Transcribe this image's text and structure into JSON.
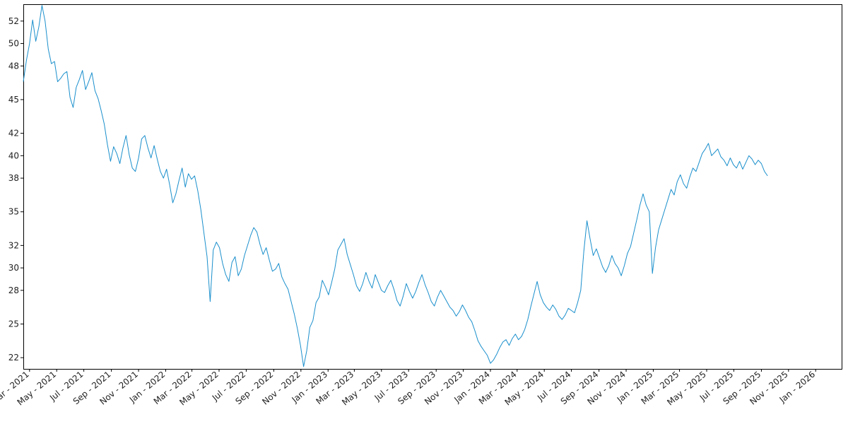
{
  "chart_data": {
    "type": "line",
    "title": "",
    "xlabel": "",
    "ylabel": "",
    "x_range": [
      "2021-02-15",
      "2026-03-02"
    ],
    "ylim": [
      21,
      53.5
    ],
    "grid": false,
    "legend": "none",
    "line_color": "#1a8fcc",
    "y_ticks": [
      22,
      25,
      28,
      30,
      32,
      35,
      38,
      40,
      42,
      45,
      48,
      50,
      52
    ],
    "y_tick_labels": [
      "22",
      "25",
      "28",
      "30",
      "32",
      "35",
      "38",
      "40",
      "42",
      "45",
      "48",
      "50",
      "52"
    ],
    "x_ticks": [
      "2021-03-01",
      "2021-05-01",
      "2021-07-01",
      "2021-09-01",
      "2021-11-01",
      "2022-01-01",
      "2022-03-01",
      "2022-05-01",
      "2022-07-01",
      "2022-09-01",
      "2022-11-01",
      "2023-01-01",
      "2023-03-01",
      "2023-05-01",
      "2023-07-01",
      "2023-09-01",
      "2023-11-01",
      "2024-01-01",
      "2024-03-01",
      "2024-05-01",
      "2024-07-01",
      "2024-09-01",
      "2024-11-01",
      "2025-01-01",
      "2025-03-01",
      "2025-05-01",
      "2025-07-01",
      "2025-09-01",
      "2025-11-01",
      "2026-01-01"
    ],
    "x_tick_labels": [
      "Mar - 2021",
      "May - 2021",
      "Jul - 2021",
      "Sep - 2021",
      "Nov - 2021",
      "Jan - 2022",
      "Mar - 2022",
      "May - 2022",
      "Jul - 2022",
      "Sep - 2022",
      "Nov - 2022",
      "Jan - 2023",
      "Mar - 2023",
      "May - 2023",
      "Jul - 2023",
      "Sep - 2023",
      "Nov - 2023",
      "Jan - 2024",
      "Mar - 2024",
      "May - 2024",
      "Jul - 2024",
      "Sep - 2024",
      "Nov - 2024",
      "Jan - 2025",
      "Mar - 2025",
      "May - 2025",
      "Jul - 2025",
      "Sep - 2025",
      "Nov - 2025",
      "Jan - 2026"
    ],
    "series": [
      {
        "points": [
          [
            "2021-02-15",
            46.6
          ],
          [
            "2021-02-22",
            48.5
          ],
          [
            "2021-03-01",
            50.0
          ],
          [
            "2021-03-08",
            52.1
          ],
          [
            "2021-03-15",
            50.2
          ],
          [
            "2021-03-22",
            51.5
          ],
          [
            "2021-03-29",
            53.4
          ],
          [
            "2021-04-05",
            52.0
          ],
          [
            "2021-04-12",
            49.5
          ],
          [
            "2021-04-19",
            48.2
          ],
          [
            "2021-04-26",
            48.4
          ],
          [
            "2021-05-03",
            46.6
          ],
          [
            "2021-05-10",
            46.9
          ],
          [
            "2021-05-17",
            47.3
          ],
          [
            "2021-05-24",
            47.5
          ],
          [
            "2021-05-31",
            45.2
          ],
          [
            "2021-06-07",
            44.3
          ],
          [
            "2021-06-14",
            46.1
          ],
          [
            "2021-06-21",
            46.8
          ],
          [
            "2021-06-28",
            47.6
          ],
          [
            "2021-07-05",
            45.9
          ],
          [
            "2021-07-12",
            46.6
          ],
          [
            "2021-07-19",
            47.4
          ],
          [
            "2021-07-26",
            45.8
          ],
          [
            "2021-08-02",
            45.1
          ],
          [
            "2021-08-09",
            44.0
          ],
          [
            "2021-08-16",
            42.8
          ],
          [
            "2021-08-23",
            41.0
          ],
          [
            "2021-08-30",
            39.5
          ],
          [
            "2021-09-06",
            40.8
          ],
          [
            "2021-09-13",
            40.2
          ],
          [
            "2021-09-20",
            39.3
          ],
          [
            "2021-09-27",
            40.7
          ],
          [
            "2021-10-04",
            41.8
          ],
          [
            "2021-10-11",
            40.1
          ],
          [
            "2021-10-18",
            38.9
          ],
          [
            "2021-10-25",
            38.6
          ],
          [
            "2021-11-01",
            39.8
          ],
          [
            "2021-11-08",
            41.5
          ],
          [
            "2021-11-15",
            41.8
          ],
          [
            "2021-11-22",
            40.7
          ],
          [
            "2021-11-29",
            39.8
          ],
          [
            "2021-12-06",
            40.9
          ],
          [
            "2021-12-13",
            39.7
          ],
          [
            "2021-12-20",
            38.6
          ],
          [
            "2021-12-27",
            38.0
          ],
          [
            "2022-01-03",
            38.8
          ],
          [
            "2022-01-10",
            37.4
          ],
          [
            "2022-01-17",
            35.8
          ],
          [
            "2022-01-24",
            36.6
          ],
          [
            "2022-01-31",
            37.8
          ],
          [
            "2022-02-07",
            38.9
          ],
          [
            "2022-02-14",
            37.2
          ],
          [
            "2022-02-21",
            38.4
          ],
          [
            "2022-02-28",
            37.9
          ],
          [
            "2022-03-07",
            38.2
          ],
          [
            "2022-03-14",
            36.9
          ],
          [
            "2022-03-21",
            35.2
          ],
          [
            "2022-03-28",
            33.1
          ],
          [
            "2022-04-04",
            31.0
          ],
          [
            "2022-04-11",
            27.0
          ],
          [
            "2022-04-18",
            31.6
          ],
          [
            "2022-04-25",
            32.3
          ],
          [
            "2022-05-02",
            31.8
          ],
          [
            "2022-05-09",
            30.4
          ],
          [
            "2022-05-16",
            29.4
          ],
          [
            "2022-05-23",
            28.8
          ],
          [
            "2022-05-30",
            30.5
          ],
          [
            "2022-06-06",
            31.0
          ],
          [
            "2022-06-13",
            29.3
          ],
          [
            "2022-06-20",
            29.9
          ],
          [
            "2022-06-27",
            31.1
          ],
          [
            "2022-07-04",
            32.0
          ],
          [
            "2022-07-11",
            32.9
          ],
          [
            "2022-07-18",
            33.6
          ],
          [
            "2022-07-25",
            33.2
          ],
          [
            "2022-08-01",
            32.1
          ],
          [
            "2022-08-08",
            31.2
          ],
          [
            "2022-08-15",
            31.8
          ],
          [
            "2022-08-22",
            30.7
          ],
          [
            "2022-08-29",
            29.7
          ],
          [
            "2022-09-05",
            29.9
          ],
          [
            "2022-09-12",
            30.4
          ],
          [
            "2022-09-19",
            29.2
          ],
          [
            "2022-09-26",
            28.6
          ],
          [
            "2022-10-03",
            28.1
          ],
          [
            "2022-10-10",
            27.0
          ],
          [
            "2022-10-17",
            25.9
          ],
          [
            "2022-10-24",
            24.6
          ],
          [
            "2022-10-31",
            23.1
          ],
          [
            "2022-11-07",
            21.2
          ],
          [
            "2022-11-14",
            22.6
          ],
          [
            "2022-11-21",
            24.7
          ],
          [
            "2022-11-28",
            25.3
          ],
          [
            "2022-12-05",
            26.9
          ],
          [
            "2022-12-12",
            27.4
          ],
          [
            "2022-12-19",
            28.9
          ],
          [
            "2022-12-26",
            28.3
          ],
          [
            "2023-01-02",
            27.6
          ],
          [
            "2023-01-09",
            28.7
          ],
          [
            "2023-01-16",
            29.9
          ],
          [
            "2023-01-23",
            31.6
          ],
          [
            "2023-01-30",
            32.1
          ],
          [
            "2023-02-06",
            32.6
          ],
          [
            "2023-02-13",
            31.2
          ],
          [
            "2023-02-20",
            30.3
          ],
          [
            "2023-02-27",
            29.4
          ],
          [
            "2023-03-06",
            28.4
          ],
          [
            "2023-03-13",
            27.9
          ],
          [
            "2023-03-20",
            28.6
          ],
          [
            "2023-03-27",
            29.6
          ],
          [
            "2023-04-03",
            28.8
          ],
          [
            "2023-04-10",
            28.2
          ],
          [
            "2023-04-17",
            29.4
          ],
          [
            "2023-04-24",
            28.7
          ],
          [
            "2023-05-01",
            28.0
          ],
          [
            "2023-05-08",
            27.8
          ],
          [
            "2023-05-15",
            28.4
          ],
          [
            "2023-05-22",
            28.9
          ],
          [
            "2023-05-29",
            28.1
          ],
          [
            "2023-06-05",
            27.1
          ],
          [
            "2023-06-12",
            26.6
          ],
          [
            "2023-06-19",
            27.5
          ],
          [
            "2023-06-26",
            28.6
          ],
          [
            "2023-07-03",
            27.9
          ],
          [
            "2023-07-10",
            27.3
          ],
          [
            "2023-07-17",
            27.9
          ],
          [
            "2023-07-24",
            28.7
          ],
          [
            "2023-07-31",
            29.4
          ],
          [
            "2023-08-07",
            28.5
          ],
          [
            "2023-08-14",
            27.8
          ],
          [
            "2023-08-21",
            27.0
          ],
          [
            "2023-08-28",
            26.6
          ],
          [
            "2023-09-04",
            27.4
          ],
          [
            "2023-09-11",
            28.0
          ],
          [
            "2023-09-18",
            27.5
          ],
          [
            "2023-09-25",
            27.0
          ],
          [
            "2023-10-02",
            26.5
          ],
          [
            "2023-10-09",
            26.2
          ],
          [
            "2023-10-16",
            25.7
          ],
          [
            "2023-10-23",
            26.1
          ],
          [
            "2023-10-30",
            26.7
          ],
          [
            "2023-11-06",
            26.2
          ],
          [
            "2023-11-13",
            25.6
          ],
          [
            "2023-11-20",
            25.2
          ],
          [
            "2023-11-27",
            24.4
          ],
          [
            "2023-12-04",
            23.5
          ],
          [
            "2023-12-11",
            23.0
          ],
          [
            "2023-12-18",
            22.6
          ],
          [
            "2023-12-25",
            22.2
          ],
          [
            "2024-01-01",
            21.5
          ],
          [
            "2024-01-08",
            21.8
          ],
          [
            "2024-01-15",
            22.3
          ],
          [
            "2024-01-22",
            22.9
          ],
          [
            "2024-01-29",
            23.4
          ],
          [
            "2024-02-05",
            23.6
          ],
          [
            "2024-02-12",
            23.1
          ],
          [
            "2024-02-19",
            23.7
          ],
          [
            "2024-02-26",
            24.1
          ],
          [
            "2024-03-04",
            23.6
          ],
          [
            "2024-03-11",
            23.9
          ],
          [
            "2024-03-18",
            24.5
          ],
          [
            "2024-03-25",
            25.4
          ],
          [
            "2024-04-01",
            26.6
          ],
          [
            "2024-04-08",
            27.7
          ],
          [
            "2024-04-15",
            28.8
          ],
          [
            "2024-04-22",
            27.6
          ],
          [
            "2024-04-29",
            26.9
          ],
          [
            "2024-05-06",
            26.5
          ],
          [
            "2024-05-13",
            26.2
          ],
          [
            "2024-05-20",
            26.7
          ],
          [
            "2024-05-27",
            26.3
          ],
          [
            "2024-06-03",
            25.7
          ],
          [
            "2024-06-10",
            25.4
          ],
          [
            "2024-06-17",
            25.8
          ],
          [
            "2024-06-24",
            26.4
          ],
          [
            "2024-07-01",
            26.2
          ],
          [
            "2024-07-08",
            26.0
          ],
          [
            "2024-07-15",
            26.9
          ],
          [
            "2024-07-22",
            28.0
          ],
          [
            "2024-07-29",
            31.5
          ],
          [
            "2024-08-05",
            34.2
          ],
          [
            "2024-08-12",
            32.6
          ],
          [
            "2024-08-19",
            31.1
          ],
          [
            "2024-08-26",
            31.7
          ],
          [
            "2024-09-02",
            30.9
          ],
          [
            "2024-09-09",
            30.1
          ],
          [
            "2024-09-16",
            29.6
          ],
          [
            "2024-09-23",
            30.2
          ],
          [
            "2024-09-30",
            31.1
          ],
          [
            "2024-10-07",
            30.4
          ],
          [
            "2024-10-14",
            30.0
          ],
          [
            "2024-10-21",
            29.3
          ],
          [
            "2024-10-28",
            30.2
          ],
          [
            "2024-11-04",
            31.3
          ],
          [
            "2024-11-11",
            31.9
          ],
          [
            "2024-11-18",
            33.1
          ],
          [
            "2024-11-25",
            34.3
          ],
          [
            "2024-12-02",
            35.6
          ],
          [
            "2024-12-09",
            36.6
          ],
          [
            "2024-12-16",
            35.6
          ],
          [
            "2024-12-23",
            35.0
          ],
          [
            "2024-12-30",
            29.5
          ],
          [
            "2025-01-06",
            31.8
          ],
          [
            "2025-01-13",
            33.4
          ],
          [
            "2025-01-20",
            34.3
          ],
          [
            "2025-01-27",
            35.2
          ],
          [
            "2025-02-03",
            36.1
          ],
          [
            "2025-02-10",
            37.0
          ],
          [
            "2025-02-17",
            36.5
          ],
          [
            "2025-02-24",
            37.7
          ],
          [
            "2025-03-03",
            38.3
          ],
          [
            "2025-03-10",
            37.5
          ],
          [
            "2025-03-17",
            37.1
          ],
          [
            "2025-03-24",
            38.1
          ],
          [
            "2025-03-31",
            38.9
          ],
          [
            "2025-04-07",
            38.6
          ],
          [
            "2025-04-14",
            39.4
          ],
          [
            "2025-04-21",
            40.2
          ],
          [
            "2025-04-28",
            40.6
          ],
          [
            "2025-05-05",
            41.1
          ],
          [
            "2025-05-12",
            40.0
          ],
          [
            "2025-05-19",
            40.3
          ],
          [
            "2025-05-26",
            40.6
          ],
          [
            "2025-06-02",
            39.9
          ],
          [
            "2025-06-09",
            39.6
          ],
          [
            "2025-06-16",
            39.1
          ],
          [
            "2025-06-23",
            39.8
          ],
          [
            "2025-06-30",
            39.2
          ],
          [
            "2025-07-07",
            38.9
          ],
          [
            "2025-07-14",
            39.5
          ],
          [
            "2025-07-21",
            38.8
          ],
          [
            "2025-07-28",
            39.4
          ],
          [
            "2025-08-04",
            40.0
          ],
          [
            "2025-08-11",
            39.7
          ],
          [
            "2025-08-18",
            39.2
          ],
          [
            "2025-08-25",
            39.6
          ],
          [
            "2025-09-01",
            39.3
          ],
          [
            "2025-09-08",
            38.6
          ],
          [
            "2025-09-15",
            38.2
          ]
        ]
      }
    ]
  }
}
